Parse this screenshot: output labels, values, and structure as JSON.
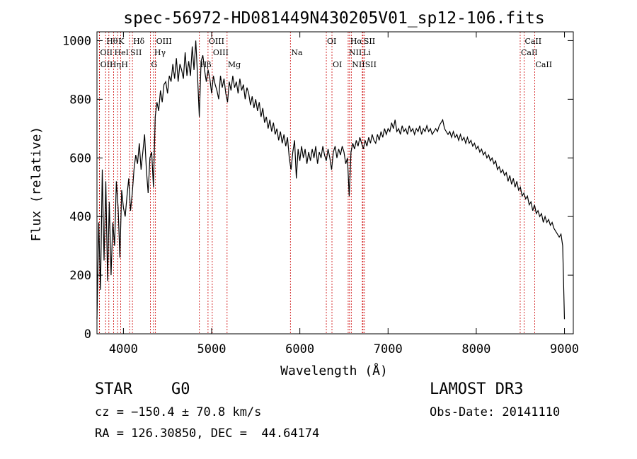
{
  "chart_data": {
    "type": "line",
    "title": "spec-56972-HD081449N430205V01_sp12-106.fits",
    "xlabel": "Wavelength (Å)",
    "ylabel": "Flux (relative)",
    "xlim": [
      3700,
      9100
    ],
    "ylim": [
      0,
      1030
    ],
    "xticks": [
      4000,
      5000,
      6000,
      7000,
      8000,
      9000
    ],
    "yticks": [
      0,
      200,
      400,
      600,
      800,
      1000
    ],
    "line_color": "#000000",
    "marker_color": "#cc0000",
    "spectrum": [
      [
        3700,
        50
      ],
      [
        3720,
        380
      ],
      [
        3740,
        150
      ],
      [
        3760,
        560
      ],
      [
        3780,
        250
      ],
      [
        3800,
        520
      ],
      [
        3820,
        180
      ],
      [
        3840,
        450
      ],
      [
        3860,
        200
      ],
      [
        3880,
        380
      ],
      [
        3900,
        300
      ],
      [
        3920,
        520
      ],
      [
        3940,
        430
      ],
      [
        3960,
        260
      ],
      [
        3980,
        490
      ],
      [
        4000,
        430
      ],
      [
        4020,
        400
      ],
      [
        4040,
        470
      ],
      [
        4060,
        530
      ],
      [
        4080,
        420
      ],
      [
        4100,
        480
      ],
      [
        4120,
        560
      ],
      [
        4140,
        610
      ],
      [
        4160,
        580
      ],
      [
        4180,
        650
      ],
      [
        4200,
        560
      ],
      [
        4220,
        620
      ],
      [
        4240,
        680
      ],
      [
        4260,
        560
      ],
      [
        4280,
        480
      ],
      [
        4300,
        600
      ],
      [
        4320,
        620
      ],
      [
        4340,
        500
      ],
      [
        4360,
        740
      ],
      [
        4380,
        790
      ],
      [
        4400,
        760
      ],
      [
        4420,
        830
      ],
      [
        4440,
        790
      ],
      [
        4460,
        850
      ],
      [
        4480,
        860
      ],
      [
        4500,
        820
      ],
      [
        4520,
        880
      ],
      [
        4540,
        860
      ],
      [
        4560,
        920
      ],
      [
        4580,
        870
      ],
      [
        4600,
        940
      ],
      [
        4620,
        860
      ],
      [
        4640,
        920
      ],
      [
        4660,
        900
      ],
      [
        4680,
        870
      ],
      [
        4700,
        960
      ],
      [
        4720,
        880
      ],
      [
        4740,
        930
      ],
      [
        4760,
        880
      ],
      [
        4780,
        980
      ],
      [
        4800,
        900
      ],
      [
        4820,
        1000
      ],
      [
        4840,
        880
      ],
      [
        4860,
        740
      ],
      [
        4880,
        930
      ],
      [
        4900,
        950
      ],
      [
        4920,
        900
      ],
      [
        4940,
        860
      ],
      [
        4960,
        900
      ],
      [
        4980,
        870
      ],
      [
        5000,
        820
      ],
      [
        5020,
        880
      ],
      [
        5040,
        850
      ],
      [
        5060,
        830
      ],
      [
        5080,
        800
      ],
      [
        5100,
        880
      ],
      [
        5120,
        840
      ],
      [
        5140,
        870
      ],
      [
        5160,
        820
      ],
      [
        5180,
        790
      ],
      [
        5200,
        860
      ],
      [
        5220,
        830
      ],
      [
        5240,
        880
      ],
      [
        5260,
        840
      ],
      [
        5280,
        860
      ],
      [
        5300,
        820
      ],
      [
        5320,
        870
      ],
      [
        5340,
        830
      ],
      [
        5360,
        850
      ],
      [
        5380,
        800
      ],
      [
        5400,
        840
      ],
      [
        5420,
        820
      ],
      [
        5440,
        780
      ],
      [
        5460,
        810
      ],
      [
        5480,
        770
      ],
      [
        5500,
        800
      ],
      [
        5520,
        760
      ],
      [
        5540,
        790
      ],
      [
        5560,
        740
      ],
      [
        5580,
        770
      ],
      [
        5600,
        720
      ],
      [
        5620,
        740
      ],
      [
        5640,
        700
      ],
      [
        5660,
        730
      ],
      [
        5680,
        690
      ],
      [
        5700,
        720
      ],
      [
        5720,
        680
      ],
      [
        5740,
        700
      ],
      [
        5760,
        660
      ],
      [
        5780,
        690
      ],
      [
        5800,
        650
      ],
      [
        5820,
        680
      ],
      [
        5840,
        640
      ],
      [
        5860,
        670
      ],
      [
        5880,
        600
      ],
      [
        5900,
        560
      ],
      [
        5920,
        620
      ],
      [
        5940,
        660
      ],
      [
        5960,
        530
      ],
      [
        5980,
        630
      ],
      [
        6000,
        590
      ],
      [
        6020,
        640
      ],
      [
        6040,
        600
      ],
      [
        6060,
        630
      ],
      [
        6080,
        580
      ],
      [
        6100,
        620
      ],
      [
        6120,
        590
      ],
      [
        6140,
        630
      ],
      [
        6160,
        600
      ],
      [
        6180,
        640
      ],
      [
        6200,
        580
      ],
      [
        6220,
        620
      ],
      [
        6240,
        600
      ],
      [
        6260,
        640
      ],
      [
        6280,
        610
      ],
      [
        6300,
        590
      ],
      [
        6320,
        630
      ],
      [
        6340,
        600
      ],
      [
        6360,
        560
      ],
      [
        6380,
        620
      ],
      [
        6400,
        640
      ],
      [
        6420,
        600
      ],
      [
        6440,
        630
      ],
      [
        6460,
        610
      ],
      [
        6480,
        640
      ],
      [
        6500,
        620
      ],
      [
        6520,
        580
      ],
      [
        6540,
        600
      ],
      [
        6560,
        470
      ],
      [
        6580,
        620
      ],
      [
        6600,
        650
      ],
      [
        6620,
        630
      ],
      [
        6640,
        660
      ],
      [
        6660,
        640
      ],
      [
        6680,
        670
      ],
      [
        6700,
        650
      ],
      [
        6720,
        630
      ],
      [
        6740,
        660
      ],
      [
        6760,
        640
      ],
      [
        6780,
        670
      ],
      [
        6800,
        650
      ],
      [
        6820,
        680
      ],
      [
        6840,
        660
      ],
      [
        6860,
        650
      ],
      [
        6880,
        680
      ],
      [
        6900,
        660
      ],
      [
        6920,
        690
      ],
      [
        6940,
        670
      ],
      [
        6960,
        700
      ],
      [
        6980,
        680
      ],
      [
        7000,
        700
      ],
      [
        7020,
        690
      ],
      [
        7040,
        720
      ],
      [
        7060,
        700
      ],
      [
        7080,
        730
      ],
      [
        7100,
        690
      ],
      [
        7120,
        700
      ],
      [
        7140,
        680
      ],
      [
        7160,
        710
      ],
      [
        7180,
        690
      ],
      [
        7200,
        700
      ],
      [
        7220,
        680
      ],
      [
        7240,
        710
      ],
      [
        7260,
        690
      ],
      [
        7280,
        700
      ],
      [
        7300,
        680
      ],
      [
        7320,
        700
      ],
      [
        7340,
        690
      ],
      [
        7360,
        710
      ],
      [
        7380,
        680
      ],
      [
        7400,
        700
      ],
      [
        7420,
        690
      ],
      [
        7440,
        710
      ],
      [
        7460,
        690
      ],
      [
        7480,
        700
      ],
      [
        7500,
        680
      ],
      [
        7520,
        690
      ],
      [
        7540,
        700
      ],
      [
        7560,
        690
      ],
      [
        7580,
        710
      ],
      [
        7600,
        720
      ],
      [
        7620,
        730
      ],
      [
        7640,
        700
      ],
      [
        7660,
        690
      ],
      [
        7680,
        680
      ],
      [
        7700,
        690
      ],
      [
        7720,
        670
      ],
      [
        7740,
        690
      ],
      [
        7760,
        670
      ],
      [
        7780,
        680
      ],
      [
        7800,
        660
      ],
      [
        7820,
        680
      ],
      [
        7840,
        660
      ],
      [
        7860,
        670
      ],
      [
        7880,
        650
      ],
      [
        7900,
        670
      ],
      [
        7920,
        650
      ],
      [
        7940,
        660
      ],
      [
        7960,
        640
      ],
      [
        7980,
        650
      ],
      [
        8000,
        630
      ],
      [
        8020,
        640
      ],
      [
        8040,
        620
      ],
      [
        8060,
        630
      ],
      [
        8080,
        610
      ],
      [
        8100,
        620
      ],
      [
        8120,
        600
      ],
      [
        8140,
        610
      ],
      [
        8160,
        590
      ],
      [
        8180,
        600
      ],
      [
        8200,
        580
      ],
      [
        8220,
        590
      ],
      [
        8240,
        560
      ],
      [
        8260,
        570
      ],
      [
        8280,
        550
      ],
      [
        8300,
        560
      ],
      [
        8320,
        540
      ],
      [
        8340,
        550
      ],
      [
        8360,
        520
      ],
      [
        8380,
        540
      ],
      [
        8400,
        510
      ],
      [
        8420,
        530
      ],
      [
        8440,
        500
      ],
      [
        8460,
        520
      ],
      [
        8480,
        490
      ],
      [
        8500,
        500
      ],
      [
        8520,
        470
      ],
      [
        8540,
        480
      ],
      [
        8560,
        460
      ],
      [
        8580,
        470
      ],
      [
        8600,
        440
      ],
      [
        8620,
        450
      ],
      [
        8640,
        420
      ],
      [
        8660,
        440
      ],
      [
        8680,
        410
      ],
      [
        8700,
        420
      ],
      [
        8720,
        400
      ],
      [
        8740,
        410
      ],
      [
        8760,
        380
      ],
      [
        8780,
        400
      ],
      [
        8800,
        380
      ],
      [
        8820,
        390
      ],
      [
        8840,
        370
      ],
      [
        8860,
        380
      ],
      [
        8880,
        360
      ],
      [
        8900,
        350
      ],
      [
        8920,
        340
      ],
      [
        8940,
        330
      ],
      [
        8960,
        340
      ],
      [
        8980,
        300
      ],
      [
        9000,
        50
      ]
    ],
    "lines": [
      {
        "label": "Hθ",
        "x": 3798,
        "row": 1
      },
      {
        "label": "OII",
        "x": 3727,
        "row": 2
      },
      {
        "label": "OII",
        "x": 3729,
        "row": 3
      },
      {
        "label": "K",
        "x": 3934,
        "row": 1
      },
      {
        "label": "H",
        "x": 3968,
        "row": 3
      },
      {
        "label": "HeI",
        "x": 3889,
        "row": 2
      },
      {
        "label": "Hη",
        "x": 3835,
        "row": 3
      },
      {
        "label": "SII",
        "x": 4070,
        "row": 2
      },
      {
        "label": "Hδ",
        "x": 4102,
        "row": 1
      },
      {
        "label": "OIII",
        "x": 4363,
        "row": 1
      },
      {
        "label": "Hγ",
        "x": 4341,
        "row": 2
      },
      {
        "label": "G",
        "x": 4305,
        "row": 3
      },
      {
        "label": "Hβ",
        "x": 4861,
        "row": 3
      },
      {
        "label": "OIII",
        "x": 4959,
        "row": 1
      },
      {
        "label": "OIII",
        "x": 5007,
        "row": 2
      },
      {
        "label": "Mg",
        "x": 5175,
        "row": 3
      },
      {
        "label": "Na",
        "x": 5893,
        "row": 2
      },
      {
        "label": "OI",
        "x": 6300,
        "row": 1
      },
      {
        "label": "OI",
        "x": 6364,
        "row": 3
      },
      {
        "label": "Hα",
        "x": 6563,
        "row": 1
      },
      {
        "label": "NII",
        "x": 6548,
        "row": 2
      },
      {
        "label": "NII",
        "x": 6583,
        "row": 3
      },
      {
        "label": "SII",
        "x": 6716,
        "row": 1
      },
      {
        "label": "Li",
        "x": 6708,
        "row": 2
      },
      {
        "label": "SII",
        "x": 6731,
        "row": 3
      },
      {
        "label": "CaII",
        "x": 8498,
        "row": 2
      },
      {
        "label": "CaII",
        "x": 8542,
        "row": 1
      },
      {
        "label": "CaII",
        "x": 8662,
        "row": 3
      }
    ]
  },
  "info": {
    "object_class": "STAR",
    "subclass": "G0",
    "survey": "LAMOST DR3",
    "cz": "cz = −150.4 ± 70.8 km/s",
    "obs_date": "Obs-Date: 20141110",
    "radec": "RA = 126.30850, DEC =  44.64174"
  }
}
